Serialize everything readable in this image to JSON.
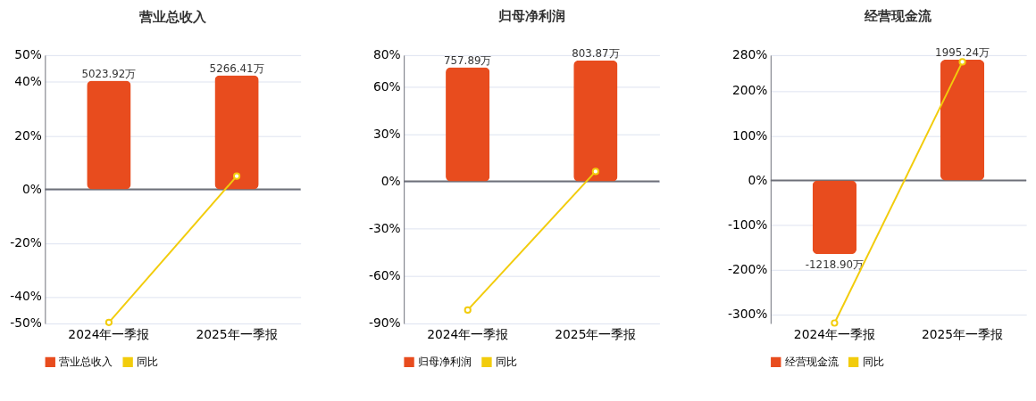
{
  "chart_data": [
    {
      "type": "bar",
      "title": "营业总收入",
      "categories": [
        "2024年一季报",
        "2025年一季报"
      ],
      "series": [
        {
          "name": "营业总收入",
          "color": "#e84c1e",
          "axis": "y2",
          "values": [
            5023.92,
            5266.41
          ],
          "value_labels": [
            "5023.92万",
            "5266.41万"
          ]
        },
        {
          "name": "同比",
          "type": "line",
          "color": "#f2cc0c",
          "values": [
            -49.6,
            4.9
          ]
        }
      ],
      "ylim": [
        -50,
        50
      ],
      "yticks": [
        {
          "value": -50,
          "label": "-50%"
        },
        {
          "value": -40,
          "label": "-40%"
        },
        {
          "value": -20,
          "label": "-20%"
        },
        {
          "value": 0,
          "label": "0%"
        },
        {
          "value": 20,
          "label": "20%"
        },
        {
          "value": 40,
          "label": "40%"
        },
        {
          "value": 50,
          "label": "50%"
        }
      ],
      "y2lim": [
        -6200,
        6200
      ],
      "ref_lines": [
        {
          "axis": "y",
          "value": 0,
          "color": "#6e7079"
        }
      ],
      "grid": "y",
      "legend": "bottom",
      "marker": "circle"
    },
    {
      "type": "bar",
      "title": "归母净利润",
      "categories": [
        "2024年一季报",
        "2025年一季报"
      ],
      "series": [
        {
          "name": "归母净利润",
          "color": "#e84c1e",
          "axis": "y2",
          "values": [
            757.89,
            803.87
          ],
          "value_labels": [
            "757.89万",
            "803.87万"
          ]
        },
        {
          "name": "同比",
          "type": "line",
          "color": "#f2cc0c",
          "values": [
            -81.5,
            6.3
          ]
        }
      ],
      "ylim": [
        -90,
        80
      ],
      "yticks": [
        {
          "value": -90,
          "label": "-90%"
        },
        {
          "value": -60,
          "label": "-60%"
        },
        {
          "value": -30,
          "label": "-30%"
        },
        {
          "value": 0,
          "label": "0%"
        },
        {
          "value": 30,
          "label": "30%"
        },
        {
          "value": 60,
          "label": "60%"
        },
        {
          "value": 80,
          "label": "80%"
        }
      ],
      "y2lim": [
        -944,
        839
      ],
      "ref_lines": [
        {
          "axis": "y",
          "value": 0,
          "color": "#6e7079"
        }
      ],
      "grid": "y",
      "legend": "bottom",
      "marker": "circle"
    },
    {
      "type": "bar",
      "title": "经营现金流",
      "categories": [
        "2024年一季报",
        "2025年一季报"
      ],
      "series": [
        {
          "name": "经营现金流",
          "color": "#e84c1e",
          "axis": "y2",
          "values": [
            -1218.9,
            1995.24
          ],
          "value_labels": [
            "-1218.90万",
            "1995.24万"
          ]
        },
        {
          "name": "同比",
          "type": "line",
          "color": "#f2cc0c",
          "values": [
            -319,
            265
          ]
        }
      ],
      "ylim": [
        -320,
        280
      ],
      "yticks": [
        {
          "value": -300,
          "label": "-300%"
        },
        {
          "value": -200,
          "label": "-200%"
        },
        {
          "value": -100,
          "label": "-100%"
        },
        {
          "value": 0,
          "label": "0%"
        },
        {
          "value": 100,
          "label": "100%"
        },
        {
          "value": 200,
          "label": "200%"
        },
        {
          "value": 280,
          "label": "280%"
        }
      ],
      "y2lim": [
        -2368,
        2072
      ],
      "ref_lines": [
        {
          "axis": "y",
          "value": 0,
          "color": "#6e7079"
        }
      ],
      "grid": "y",
      "legend": "bottom",
      "marker": "circle"
    }
  ]
}
